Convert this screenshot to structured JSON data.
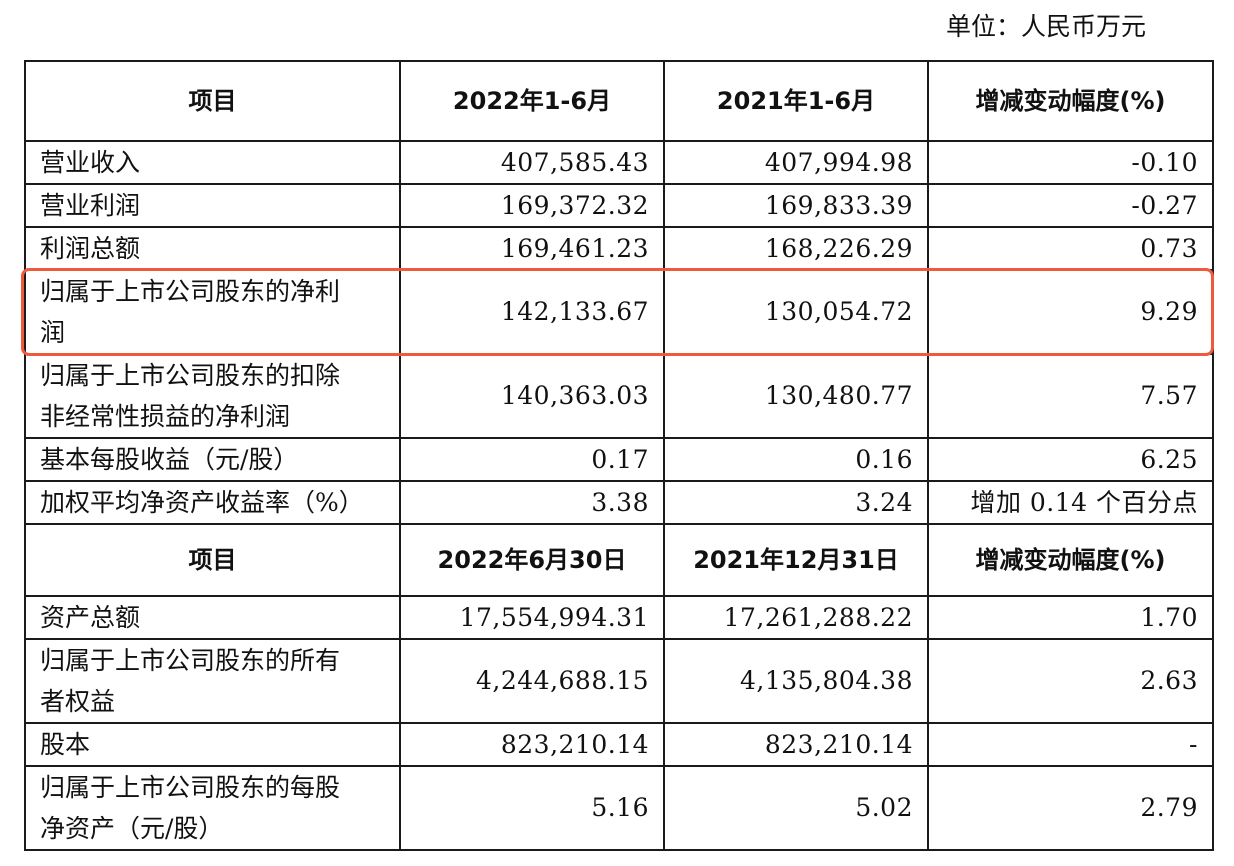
{
  "unit_label": "单位：人民币万元",
  "section1": {
    "headers": [
      "项目",
      "2022年1-6月",
      "2021年1-6月",
      "增减变动幅度(%)"
    ],
    "rows": [
      {
        "item": "营业收入",
        "current": "407,585.43",
        "prior": "407,994.98",
        "change": "-0.10"
      },
      {
        "item": "营业利润",
        "current": "169,372.32",
        "prior": "169,833.39",
        "change": "-0.27"
      },
      {
        "item": "利润总额",
        "current": "169,461.23",
        "prior": "168,226.29",
        "change": "0.73"
      },
      {
        "item_line1": "归属于上市公司股东的净利",
        "item_line2": "润",
        "current": "142,133.67",
        "prior": "130,054.72",
        "change": "9.29"
      },
      {
        "item_line1": "归属于上市公司股东的扣除",
        "item_line2": "非经常性损益的净利润",
        "current": "140,363.03",
        "prior": "130,480.77",
        "change": "7.57"
      },
      {
        "item": "基本每股收益（元/股）",
        "current": "0.17",
        "prior": "0.16",
        "change": "6.25"
      },
      {
        "item": "加权平均净资产收益率（%）",
        "current": "3.38",
        "prior": "3.24",
        "change": "增加 0.14 个百分点"
      }
    ]
  },
  "section2": {
    "headers": [
      "项目",
      "2022年6月30日",
      "2021年12月31日",
      "增减变动幅度(%)"
    ],
    "rows": [
      {
        "item": "资产总额",
        "current": "17,554,994.31",
        "prior": "17,261,288.22",
        "change": "1.70"
      },
      {
        "item_line1": "归属于上市公司股东的所有",
        "item_line2": "者权益",
        "current": "4,244,688.15",
        "prior": "4,135,804.38",
        "change": "2.63"
      },
      {
        "item": "股本",
        "current": "823,210.14",
        "prior": "823,210.14",
        "change": "-"
      },
      {
        "item_line1": "归属于上市公司股东的每股",
        "item_line2": "净资产（元/股）",
        "current": "5.16",
        "prior": "5.02",
        "change": "2.79"
      }
    ]
  },
  "colors": {
    "highlight_border": "#ef5a3c",
    "grid": "#1a1a1a"
  }
}
